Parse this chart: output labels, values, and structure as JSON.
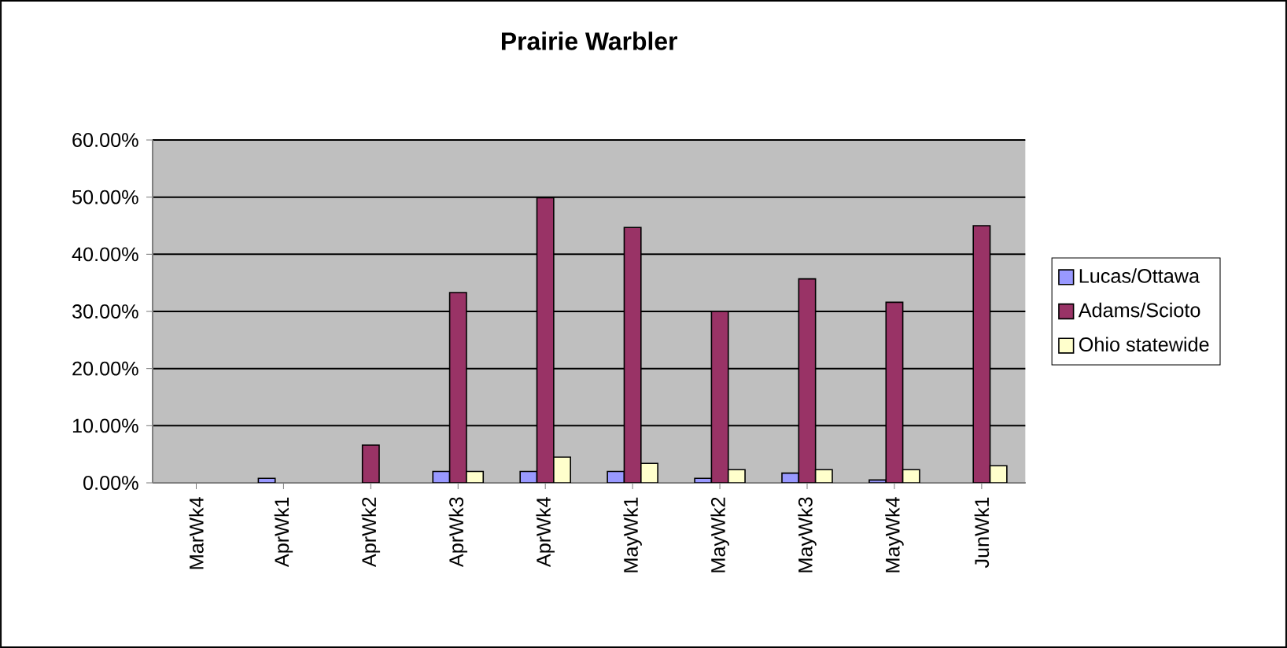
{
  "chart_data": {
    "type": "bar",
    "title": "Prairie Warbler",
    "categories": [
      "MarWk4",
      "AprWk1",
      "AprWk2",
      "AprWk3",
      "AprWk4",
      "MayWk1",
      "MayWk2",
      "MayWk3",
      "MayWk4",
      "JunWk1"
    ],
    "series": [
      {
        "name": "Lucas/Ottawa",
        "color": "#9999ff",
        "values": [
          0,
          0.8,
          0,
          2.0,
          2.0,
          2.0,
          0.8,
          1.7,
          0.5,
          0
        ]
      },
      {
        "name": "Adams/Scioto",
        "color": "#993366",
        "values": [
          0,
          0,
          6.6,
          33.3,
          49.9,
          44.7,
          30.0,
          35.7,
          31.6,
          45.0
        ]
      },
      {
        "name": "Ohio statewide",
        "color": "#ffffcc",
        "values": [
          0,
          0,
          0,
          2.0,
          4.5,
          3.4,
          2.3,
          2.3,
          2.3,
          3.0
        ]
      }
    ],
    "ylim": [
      0,
      60
    ],
    "yticks": [
      {
        "value": 0,
        "label": "0.00%"
      },
      {
        "value": 10,
        "label": "10.00%"
      },
      {
        "value": 20,
        "label": "20.00%"
      },
      {
        "value": 30,
        "label": "30.00%"
      },
      {
        "value": 40,
        "label": "40.00%"
      },
      {
        "value": 50,
        "label": "50.00%"
      },
      {
        "value": 60,
        "label": "60.00%"
      }
    ],
    "grid": "y",
    "legend": "right"
  }
}
